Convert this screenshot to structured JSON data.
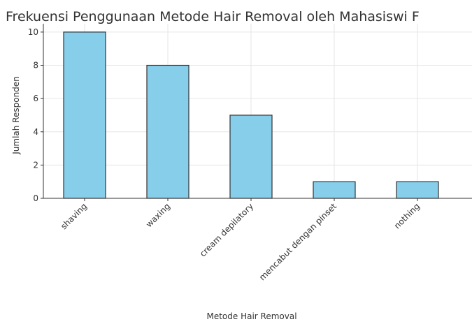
{
  "chart_data": {
    "type": "bar",
    "title": "Frekuensi Penggunaan Metode Hair Removal oleh Mahasiswi F",
    "xlabel": "Metode Hair Removal",
    "ylabel": "Jumlah Responden",
    "categories": [
      "shaving",
      "waxing",
      "cream depilatory",
      "mencabut dengan pinset",
      "nothing"
    ],
    "values": [
      10,
      8,
      5,
      1,
      1
    ],
    "ylim": [
      0,
      10.5
    ],
    "yticks": [
      "0",
      "2",
      "4",
      "6",
      "8",
      "10"
    ],
    "grid": true,
    "legend": "none",
    "bar_color": "#87ceeb",
    "bar_edge_color": "#333333",
    "grid_color": "#e6e6e6"
  }
}
